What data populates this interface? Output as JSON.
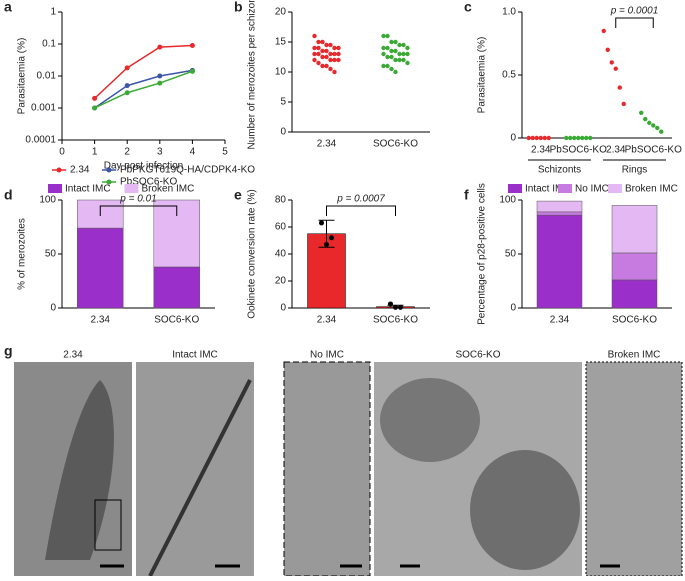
{
  "chart_data": [
    {
      "panel": "a",
      "type": "line",
      "log_y": true,
      "x_label": "Day post infection",
      "y_label": "Parasitaemia (%)",
      "x": [
        1,
        2,
        3,
        4
      ],
      "xlim": [
        0,
        5
      ],
      "xticks": [
        0,
        1,
        2,
        3,
        4,
        5
      ],
      "ylim": [
        0.0001,
        1
      ],
      "yticks": [
        0.0001,
        0.001,
        0.01,
        0.1,
        1
      ],
      "series": [
        {
          "name": "2.34",
          "color": "#e8282b",
          "values": [
            0.002,
            0.018,
            0.08,
            0.09
          ]
        },
        {
          "name": "PbPKGT619Q-HA/CDPK4-KO",
          "color": "#3b56a6",
          "values": [
            0.001,
            0.005,
            0.01,
            0.015
          ]
        },
        {
          "name": "PbSOC6-KO",
          "color": "#3aaa35",
          "values": [
            0.001,
            0.003,
            0.006,
            0.014
          ]
        }
      ]
    },
    {
      "panel": "b",
      "type": "strip",
      "y_label": "Number of merozoites per schizont",
      "categories": [
        "2.34",
        "SOC6-KO"
      ],
      "colors": [
        "#e8282b",
        "#3aaa35"
      ],
      "ylim": [
        0,
        20
      ],
      "yticks": [
        0,
        5,
        10,
        15,
        20
      ],
      "values": [
        [
          16,
          15,
          15,
          14.5,
          14.5,
          14,
          14,
          14,
          14,
          13.5,
          13.5,
          13,
          13,
          13,
          13,
          13,
          12.5,
          12.5,
          12,
          12,
          12,
          12,
          11.5,
          11,
          11,
          10.5,
          10
        ],
        [
          16,
          16,
          15,
          15,
          14.5,
          14.5,
          14,
          14,
          14,
          13.5,
          13.5,
          13,
          13,
          13,
          13,
          12.5,
          12.5,
          12,
          12,
          12,
          11.5,
          11,
          11,
          10.5,
          10
        ]
      ]
    },
    {
      "panel": "c",
      "type": "strip",
      "y_label": "Parasitaemia (%)",
      "categories": [
        "2.34",
        "PbSOC6-KO",
        "2.34",
        "PbSOC6-KO"
      ],
      "groups": [
        "Schizonts",
        "Rings"
      ],
      "colors": [
        "#e8282b",
        "#3aaa35",
        "#e8282b",
        "#3aaa35"
      ],
      "ylim": [
        0,
        1
      ],
      "yticks": [
        0,
        0.5,
        {
          "value": 1,
          "label": "1.0"
        }
      ],
      "annotation": "p = 0.0001",
      "values": [
        [
          0,
          0,
          0,
          0,
          0,
          0
        ],
        [
          0,
          0,
          0,
          0,
          0,
          0,
          0
        ],
        [
          0.85,
          0.7,
          0.6,
          0.55,
          0.4,
          0.27
        ],
        [
          0.2,
          0.15,
          0.12,
          0.1,
          0.08,
          0.05
        ]
      ]
    },
    {
      "panel": "d",
      "type": "stacked",
      "y_label": "% of merozoites",
      "categories": [
        "2.34",
        "SOC6-KO"
      ],
      "ylim": [
        0,
        100
      ],
      "yticks": [
        0,
        50,
        100
      ],
      "annotation": "p = 0.01",
      "series": [
        {
          "name": "Intact IMC",
          "color": "#9b2fc9",
          "values": [
            74,
            38
          ]
        },
        {
          "name": "Broken IMC",
          "color": "#e3b8f3",
          "values": [
            26,
            62
          ]
        }
      ]
    },
    {
      "panel": "e",
      "type": "bar",
      "y_label": "Ookinete conversion rate (%)",
      "categories": [
        "2.34",
        "SOC6-KO"
      ],
      "color": "#e8282b",
      "ylim": [
        0,
        80
      ],
      "yticks": [
        0,
        20,
        40,
        60,
        80
      ],
      "annotation": "p = 0.0007",
      "values": [
        55,
        1
      ],
      "errors": [
        10,
        1
      ],
      "points": [
        [
          63,
          47,
          52
        ],
        [
          3,
          0.5,
          0.5
        ]
      ]
    },
    {
      "panel": "f",
      "type": "stacked",
      "y_label": "Percentage of p28-positive cells",
      "categories": [
        "2.34",
        "SOC6-KO"
      ],
      "ylim": [
        0,
        100
      ],
      "yticks": [
        0,
        50,
        100
      ],
      "series": [
        {
          "name": "Intact IMC",
          "color": "#9b2fc9",
          "values": [
            86,
            26
          ]
        },
        {
          "name": "No IMC",
          "color": "#c77be0",
          "values": [
            3,
            25
          ]
        },
        {
          "name": "Broken IMC",
          "color": "#e3b8f3",
          "values": [
            10,
            44
          ]
        }
      ]
    }
  ],
  "images": {
    "panel": "g",
    "labels": [
      "2.34",
      "Intact IMC",
      "No IMC",
      "SOC6-KO",
      "Broken IMC"
    ]
  }
}
